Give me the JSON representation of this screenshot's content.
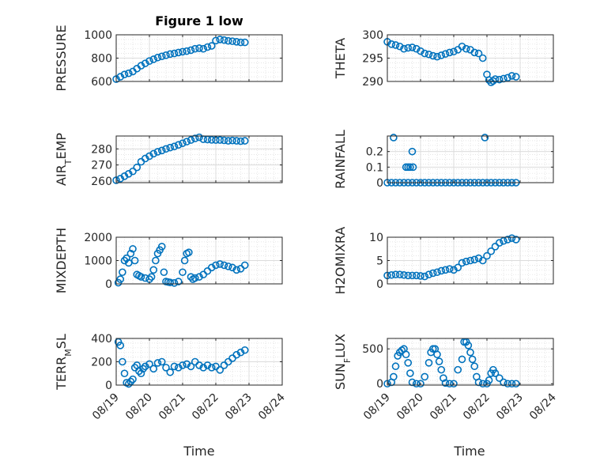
{
  "figure": {
    "title": "Figure 1 low",
    "xlabel": "Time",
    "marker_color": "#0072BD",
    "grid_color": "#dcdcdc"
  },
  "chart_data": [
    {
      "type": "scatter",
      "id": "pressure",
      "ylabel": "PRESSURE",
      "ylim": [
        600,
        1000
      ],
      "yticks": [
        600,
        800,
        1000
      ],
      "xlim": [
        0,
        4
      ],
      "grid": true,
      "x": [
        0.0,
        0.1,
        0.2,
        0.3,
        0.4,
        0.5,
        0.6,
        0.7,
        0.8,
        0.9,
        1.0,
        1.1,
        1.2,
        1.3,
        1.4,
        1.5,
        1.6,
        1.7,
        1.8,
        1.9,
        2.0,
        2.1,
        2.2,
        2.3,
        2.4,
        2.5,
        2.6,
        2.7,
        2.8,
        2.9,
        3.0,
        3.1
      ],
      "y": [
        620,
        640,
        660,
        670,
        685,
        710,
        735,
        755,
        775,
        790,
        805,
        815,
        825,
        835,
        840,
        848,
        855,
        860,
        868,
        880,
        885,
        880,
        895,
        905,
        950,
        960,
        955,
        948,
        945,
        940,
        935,
        935
      ]
    },
    {
      "type": "scatter",
      "id": "theta",
      "ylabel": "THETA",
      "ylim": [
        290,
        300
      ],
      "yticks": [
        290,
        295,
        300
      ],
      "xlim": [
        0,
        4
      ],
      "grid": true,
      "x": [
        0.0,
        0.1,
        0.2,
        0.3,
        0.4,
        0.5,
        0.6,
        0.7,
        0.8,
        0.9,
        1.0,
        1.1,
        1.2,
        1.3,
        1.4,
        1.5,
        1.6,
        1.7,
        1.8,
        1.9,
        2.0,
        2.1,
        2.2,
        2.3,
        2.4,
        2.45,
        2.5,
        2.55,
        2.6,
        2.7,
        2.8,
        2.9,
        3.0,
        3.1
      ],
      "y": [
        298.5,
        298.0,
        297.8,
        297.5,
        297.0,
        297.2,
        297.3,
        297.0,
        296.5,
        296.0,
        295.8,
        295.5,
        295.3,
        295.6,
        295.9,
        296.2,
        296.4,
        296.8,
        297.5,
        297.0,
        296.8,
        296.2,
        296.0,
        295.0,
        291.5,
        290.3,
        289.8,
        290.1,
        290.5,
        290.4,
        290.6,
        290.8,
        291.2,
        291.0
      ]
    },
    {
      "type": "scatter",
      "id": "air-temp",
      "ylabel": "AIR",
      "ylabel_sub": "T",
      "ylabel_rest": "EMP",
      "ylim": [
        259,
        288
      ],
      "yticks": [
        260,
        270,
        280
      ],
      "xlim": [
        0,
        4
      ],
      "grid": true,
      "x": [
        0.0,
        0.1,
        0.2,
        0.3,
        0.4,
        0.5,
        0.6,
        0.7,
        0.8,
        0.9,
        1.0,
        1.1,
        1.2,
        1.3,
        1.4,
        1.5,
        1.6,
        1.7,
        1.8,
        1.9,
        2.0,
        2.1,
        2.2,
        2.3,
        2.4,
        2.5,
        2.6,
        2.7,
        2.8,
        2.9,
        3.0,
        3.1
      ],
      "y": [
        260.5,
        261.5,
        263.0,
        264.5,
        266.0,
        268.5,
        272.0,
        274.0,
        275.5,
        277.0,
        278.2,
        279.0,
        280.0,
        280.8,
        281.5,
        282.5,
        283.5,
        284.5,
        285.5,
        286.5,
        287.2,
        286.0,
        285.8,
        285.6,
        285.5,
        285.5,
        285.3,
        285.0,
        285.2,
        285.0,
        284.8,
        285.0
      ]
    },
    {
      "type": "scatter",
      "id": "rainfall",
      "ylabel": "RAINFALL",
      "ylim": [
        0,
        0.3
      ],
      "yticks": [
        0,
        0.1,
        0.2
      ],
      "xlim": [
        0,
        4
      ],
      "grid": true,
      "x": [
        0.0,
        0.1,
        0.2,
        0.3,
        0.4,
        0.5,
        0.6,
        0.7,
        0.8,
        0.9,
        1.0,
        1.1,
        1.2,
        1.3,
        1.4,
        1.5,
        1.6,
        1.7,
        1.8,
        1.9,
        2.0,
        2.1,
        2.2,
        2.3,
        2.4,
        2.5,
        2.6,
        2.7,
        2.8,
        2.9,
        3.0,
        3.1,
        0.15,
        0.45,
        0.5,
        0.55,
        0.6,
        0.62,
        2.35
      ],
      "y": [
        0,
        0,
        0,
        0,
        0,
        0,
        0,
        0,
        0,
        0,
        0,
        0,
        0,
        0,
        0,
        0,
        0,
        0,
        0,
        0,
        0,
        0,
        0,
        0,
        0,
        0,
        0,
        0,
        0,
        0,
        0,
        0,
        0.29,
        0.1,
        0.1,
        0.1,
        0.2,
        0.1,
        0.29
      ]
    },
    {
      "type": "scatter",
      "id": "mixdepth",
      "ylabel": "MIXDEPTH",
      "ylim": [
        0,
        2000
      ],
      "yticks": [
        0,
        1000,
        2000
      ],
      "xlim": [
        0,
        4
      ],
      "grid": true,
      "x": [
        0.05,
        0.1,
        0.15,
        0.2,
        0.25,
        0.3,
        0.35,
        0.4,
        0.45,
        0.5,
        0.55,
        0.6,
        0.7,
        0.8,
        0.85,
        0.9,
        0.95,
        1.0,
        1.05,
        1.1,
        1.15,
        1.2,
        1.25,
        1.3,
        1.4,
        1.5,
        1.6,
        1.65,
        1.7,
        1.75,
        1.8,
        1.85,
        1.9,
        2.0,
        2.1,
        2.2,
        2.3,
        2.4,
        2.5,
        2.6,
        2.7,
        2.8,
        2.9,
        3.0,
        3.1
      ],
      "y": [
        50,
        200,
        500,
        1000,
        1100,
        900,
        1300,
        1500,
        1000,
        400,
        350,
        300,
        250,
        200,
        300,
        600,
        1000,
        1300,
        1450,
        1600,
        500,
        100,
        80,
        60,
        40,
        100,
        500,
        1000,
        1300,
        1350,
        300,
        200,
        250,
        300,
        400,
        550,
        700,
        800,
        850,
        800,
        750,
        700,
        600,
        650,
        800
      ]
    },
    {
      "type": "scatter",
      "id": "h2o-mixratio",
      "ylabel": "H2OMIXRA",
      "ylim": [
        0,
        10
      ],
      "yticks": [
        0,
        5,
        10
      ],
      "xlim": [
        0,
        4
      ],
      "grid": true,
      "x": [
        0.0,
        0.1,
        0.2,
        0.3,
        0.4,
        0.5,
        0.6,
        0.7,
        0.8,
        0.9,
        1.0,
        1.1,
        1.2,
        1.3,
        1.4,
        1.5,
        1.6,
        1.7,
        1.8,
        1.9,
        2.0,
        2.1,
        2.2,
        2.3,
        2.4,
        2.5,
        2.6,
        2.7,
        2.8,
        2.9,
        3.0,
        3.1
      ],
      "y": [
        1.8,
        1.9,
        2.0,
        2.0,
        1.9,
        1.8,
        1.8,
        1.8,
        1.7,
        1.6,
        2.0,
        2.3,
        2.5,
        2.8,
        3.0,
        3.2,
        3.0,
        3.5,
        4.5,
        4.8,
        5.0,
        5.2,
        5.5,
        5.0,
        6.0,
        7.0,
        8.0,
        8.8,
        9.2,
        9.5,
        9.8,
        9.5
      ]
    },
    {
      "type": "scatter",
      "id": "terr-msl",
      "ylabel": "TERR",
      "ylabel_sub": "M",
      "ylabel_rest": "SL",
      "ylim": [
        0,
        400
      ],
      "yticks": [
        0,
        200,
        400
      ],
      "xlim": [
        0,
        4
      ],
      "grid": true,
      "x": [
        0.05,
        0.1,
        0.15,
        0.2,
        0.25,
        0.3,
        0.35,
        0.4,
        0.45,
        0.5,
        0.55,
        0.6,
        0.65,
        0.7,
        0.8,
        0.9,
        1.0,
        1.1,
        1.2,
        1.3,
        1.4,
        1.5,
        1.6,
        1.7,
        1.8,
        1.9,
        2.0,
        2.1,
        2.2,
        2.3,
        2.4,
        2.5,
        2.6,
        2.7,
        2.8,
        2.9,
        3.0,
        3.1
      ],
      "y": [
        370,
        340,
        200,
        100,
        20,
        10,
        30,
        50,
        150,
        170,
        120,
        100,
        140,
        160,
        180,
        140,
        190,
        200,
        150,
        110,
        160,
        150,
        170,
        180,
        160,
        200,
        170,
        150,
        170,
        150,
        160,
        130,
        170,
        200,
        230,
        260,
        280,
        300
      ]
    },
    {
      "type": "scatter",
      "id": "sun-flux",
      "ylabel": "SUN",
      "ylabel_sub": "F",
      "ylabel_rest": "LUX",
      "ylim": [
        -20,
        650
      ],
      "yticks": [
        0,
        500
      ],
      "xlim": [
        0,
        4
      ],
      "grid": true,
      "x": [
        0.0,
        0.1,
        0.15,
        0.2,
        0.25,
        0.3,
        0.35,
        0.4,
        0.45,
        0.5,
        0.55,
        0.6,
        0.7,
        0.8,
        0.9,
        1.0,
        1.05,
        1.1,
        1.15,
        1.2,
        1.25,
        1.3,
        1.35,
        1.4,
        1.5,
        1.6,
        1.7,
        1.8,
        1.85,
        1.9,
        1.95,
        2.0,
        2.05,
        2.1,
        2.15,
        2.2,
        2.3,
        2.4,
        2.45,
        2.5,
        2.55,
        2.6,
        2.7,
        2.8,
        2.9,
        3.0,
        3.1
      ],
      "y": [
        0,
        20,
        100,
        250,
        400,
        450,
        480,
        500,
        420,
        300,
        150,
        20,
        0,
        0,
        100,
        300,
        450,
        500,
        500,
        420,
        320,
        200,
        80,
        10,
        0,
        0,
        200,
        350,
        600,
        600,
        550,
        450,
        350,
        250,
        100,
        20,
        0,
        0,
        50,
        150,
        200,
        150,
        80,
        20,
        0,
        0,
        0
      ]
    }
  ],
  "xtick_labels": [
    "08/19",
    "08/20",
    "08/21",
    "08/22",
    "08/23",
    "08/24"
  ]
}
